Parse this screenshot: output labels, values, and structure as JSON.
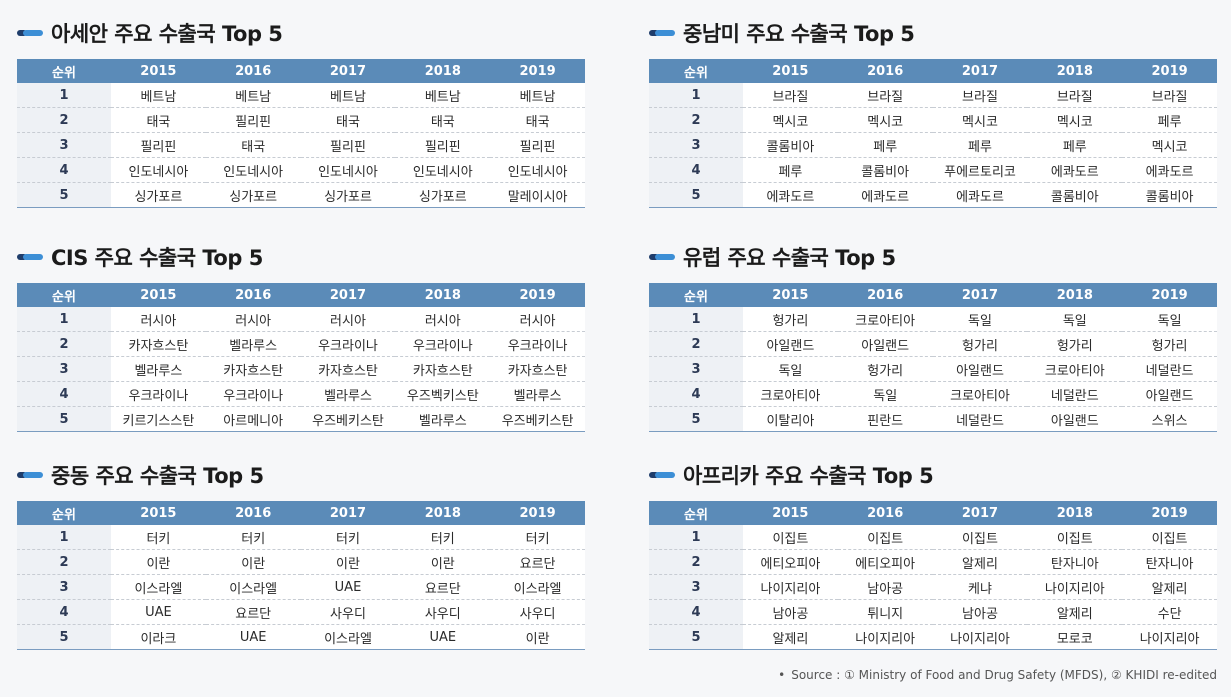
{
  "headers": [
    "순위",
    "2015",
    "2016",
    "2017",
    "2018",
    "2019"
  ],
  "panels": [
    {
      "title": "아세안 주요 수출국 Top 5",
      "rows": [
        {
          "rank": "1",
          "values": [
            "베트남",
            "베트남",
            "베트남",
            "베트남",
            "베트남"
          ]
        },
        {
          "rank": "2",
          "values": [
            "태국",
            "필리핀",
            "태국",
            "태국",
            "태국"
          ]
        },
        {
          "rank": "3",
          "values": [
            "필리핀",
            "태국",
            "필리핀",
            "필리핀",
            "필리핀"
          ]
        },
        {
          "rank": "4",
          "values": [
            "인도네시아",
            "인도네시아",
            "인도네시아",
            "인도네시아",
            "인도네시아"
          ]
        },
        {
          "rank": "5",
          "values": [
            "싱가포르",
            "싱가포르",
            "싱가포르",
            "싱가포르",
            "말레이시아"
          ]
        }
      ]
    },
    {
      "title": "중남미 주요 수출국 Top 5",
      "rows": [
        {
          "rank": "1",
          "values": [
            "브라질",
            "브라질",
            "브라질",
            "브라질",
            "브라질"
          ]
        },
        {
          "rank": "2",
          "values": [
            "멕시코",
            "멕시코",
            "멕시코",
            "멕시코",
            "페루"
          ]
        },
        {
          "rank": "3",
          "values": [
            "콜롬비아",
            "페루",
            "페루",
            "페루",
            "멕시코"
          ]
        },
        {
          "rank": "4",
          "values": [
            "페루",
            "콜롬비아",
            "푸에르토리코",
            "에콰도르",
            "에콰도르"
          ]
        },
        {
          "rank": "5",
          "values": [
            "에콰도르",
            "에콰도르",
            "에콰도르",
            "콜롬비아",
            "콜롬비아"
          ]
        }
      ]
    },
    {
      "title": "CIS 주요 수출국 Top 5",
      "rows": [
        {
          "rank": "1",
          "values": [
            "러시아",
            "러시아",
            "러시아",
            "러시아",
            "러시아"
          ]
        },
        {
          "rank": "2",
          "values": [
            "카자흐스탄",
            "벨라루스",
            "우크라이나",
            "우크라이나",
            "우크라이나"
          ]
        },
        {
          "rank": "3",
          "values": [
            "벨라루스",
            "카자흐스탄",
            "카자흐스탄",
            "카자흐스탄",
            "카자흐스탄"
          ]
        },
        {
          "rank": "4",
          "values": [
            "우크라이나",
            "우크라이나",
            "벨라루스",
            "우즈벡키스탄",
            "벨라루스"
          ]
        },
        {
          "rank": "5",
          "values": [
            "키르기스스탄",
            "아르메니아",
            "우즈베키스탄",
            "벨라루스",
            "우즈베키스탄"
          ]
        }
      ]
    },
    {
      "title": "유럽 주요 수출국 Top 5",
      "rows": [
        {
          "rank": "1",
          "values": [
            "헝가리",
            "크로아티아",
            "독일",
            "독일",
            "독일"
          ]
        },
        {
          "rank": "2",
          "values": [
            "아일랜드",
            "아일랜드",
            "헝가리",
            "헝가리",
            "헝가리"
          ]
        },
        {
          "rank": "3",
          "values": [
            "독일",
            "헝가리",
            "아일랜드",
            "크로아티아",
            "네덜란드"
          ]
        },
        {
          "rank": "4",
          "values": [
            "크로아티아",
            "독일",
            "크로아티아",
            "네덜란드",
            "아일랜드"
          ]
        },
        {
          "rank": "5",
          "values": [
            "이탈리아",
            "핀란드",
            "네덜란드",
            "아일랜드",
            "스위스"
          ]
        }
      ]
    },
    {
      "title": "중동 주요 수출국 Top 5",
      "rows": [
        {
          "rank": "1",
          "values": [
            "터키",
            "터키",
            "터키",
            "터키",
            "터키"
          ]
        },
        {
          "rank": "2",
          "values": [
            "이란",
            "이란",
            "이란",
            "이란",
            "요르단"
          ]
        },
        {
          "rank": "3",
          "values": [
            "이스라엘",
            "이스라엘",
            "UAE",
            "요르단",
            "이스라엘"
          ]
        },
        {
          "rank": "4",
          "values": [
            "UAE",
            "요르단",
            "사우디",
            "사우디",
            "사우디"
          ]
        },
        {
          "rank": "5",
          "values": [
            "이라크",
            "UAE",
            "이스라엘",
            "UAE",
            "이란"
          ]
        }
      ]
    },
    {
      "title": "아프리카 주요 수출국 Top 5",
      "rows": [
        {
          "rank": "1",
          "values": [
            "이집트",
            "이집트",
            "이집트",
            "이집트",
            "이집트"
          ]
        },
        {
          "rank": "2",
          "values": [
            "에티오피아",
            "에티오피아",
            "알제리",
            "탄자니아",
            "탄자니아"
          ]
        },
        {
          "rank": "3",
          "values": [
            "나이지리아",
            "남아공",
            "케냐",
            "나이지리아",
            "알제리"
          ]
        },
        {
          "rank": "4",
          "values": [
            "남아공",
            "튀니지",
            "남아공",
            "알제리",
            "수단"
          ]
        },
        {
          "rank": "5",
          "values": [
            "알제리",
            "나이지리아",
            "나이지리아",
            "모로코",
            "나이지리아"
          ]
        }
      ]
    }
  ],
  "source": {
    "bullet": "•",
    "text": "Source : ① Ministry of Food and Drug Safety (MFDS), ② KHIDI re-edited"
  },
  "colors": {
    "header_bg": "#5b8bb8",
    "rank_bg": "#eef1f5",
    "title_bar_dark": "#1f3d6b",
    "title_bar_light": "#3d8fd6"
  }
}
